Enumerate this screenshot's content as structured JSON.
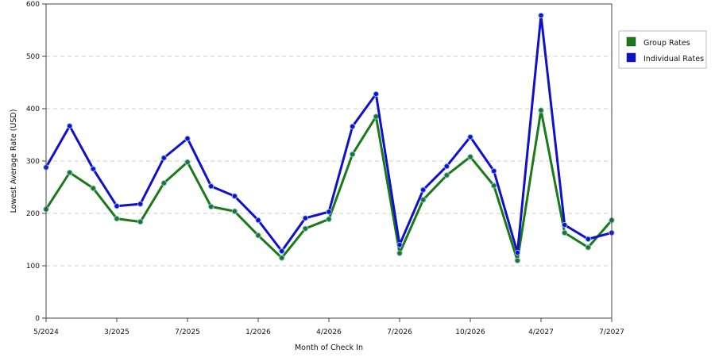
{
  "chart_data": {
    "type": "line",
    "title": "",
    "xlabel": "Month of Check In",
    "ylabel": "Lowest Average Rate (USD)",
    "ylim": [
      0,
      600
    ],
    "y_ticks": [
      "0",
      "100",
      "200",
      "300",
      "400",
      "500",
      "600"
    ],
    "x_tick_labels": [
      "5/2024",
      "3/2025",
      "7/2025",
      "1/2026",
      "4/2026",
      "7/2026",
      "10/2026",
      "4/2027",
      "7/2027"
    ],
    "x_tick_indices": [
      0,
      3,
      6,
      9,
      12,
      15,
      18,
      21,
      24
    ],
    "grid": true,
    "legend_position": "right",
    "series": [
      {
        "name": "Group Rates",
        "color": "#1a7a1a",
        "values": [
          208,
          278,
          248,
          190,
          184,
          258,
          298,
          213,
          204,
          158,
          115,
          171,
          189,
          313,
          385,
          124,
          226,
          273,
          308,
          253,
          110,
          397,
          163,
          135,
          187
        ]
      },
      {
        "name": "Individual Rates",
        "color": "#1010cc",
        "values": [
          288,
          367,
          285,
          214,
          218,
          306,
          343,
          252,
          233,
          187,
          128,
          191,
          203,
          366,
          428,
          140,
          245,
          290,
          346,
          281,
          125,
          578,
          178,
          151,
          163
        ]
      }
    ]
  }
}
